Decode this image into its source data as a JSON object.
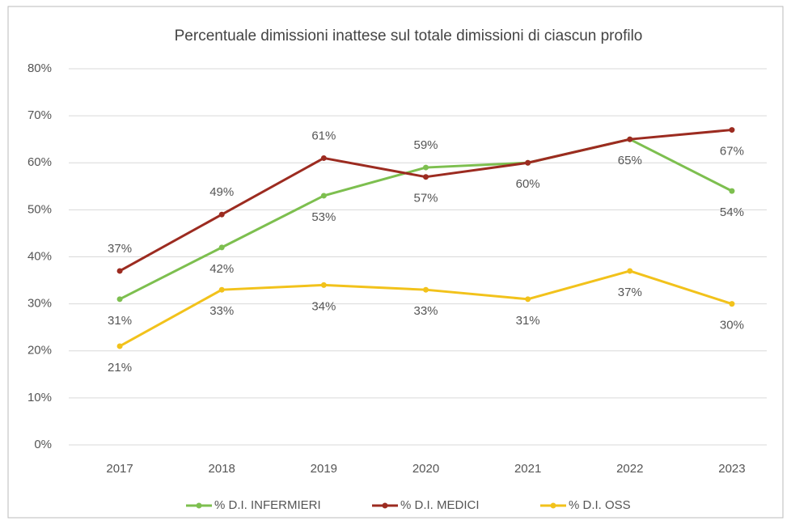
{
  "chart_data": {
    "type": "line",
    "title": "Percentuale dimissioni inattese sul totale dimissioni di ciascun profilo",
    "categories": [
      "2017",
      "2018",
      "2019",
      "2020",
      "2021",
      "2022",
      "2023"
    ],
    "series": [
      {
        "name": "% D.I. INFERMIERI",
        "color": "#7dbf4f",
        "values": [
          31,
          42,
          53,
          59,
          60,
          65,
          54
        ],
        "value_labels": [
          "31%",
          "42%",
          "53%",
          "59%",
          null,
          null,
          "54%"
        ]
      },
      {
        "name": "% D.I. MEDICI",
        "color": "#9c2b20",
        "values": [
          37,
          49,
          61,
          57,
          60,
          65,
          67
        ],
        "value_labels": [
          "37%",
          "49%",
          "61%",
          "57%",
          "60%",
          "65%",
          "67%"
        ]
      },
      {
        "name": "% D.I. OSS",
        "color": "#f2c21b",
        "values": [
          21,
          33,
          34,
          33,
          31,
          37,
          30
        ],
        "value_labels": [
          "21%",
          "33%",
          "34%",
          "33%",
          "31%",
          "37%",
          "30%"
        ]
      }
    ],
    "ylim": [
      0,
      80
    ],
    "yticks": [
      {
        "value": 0,
        "label": "0%"
      },
      {
        "value": 10,
        "label": "10%"
      },
      {
        "value": 20,
        "label": "20%"
      },
      {
        "value": 30,
        "label": "30%"
      },
      {
        "value": 40,
        "label": "40%"
      },
      {
        "value": 50,
        "label": "50%"
      },
      {
        "value": 60,
        "label": "60%"
      },
      {
        "value": 70,
        "label": "70%"
      },
      {
        "value": 80,
        "label": "80%"
      }
    ],
    "grid": true
  }
}
